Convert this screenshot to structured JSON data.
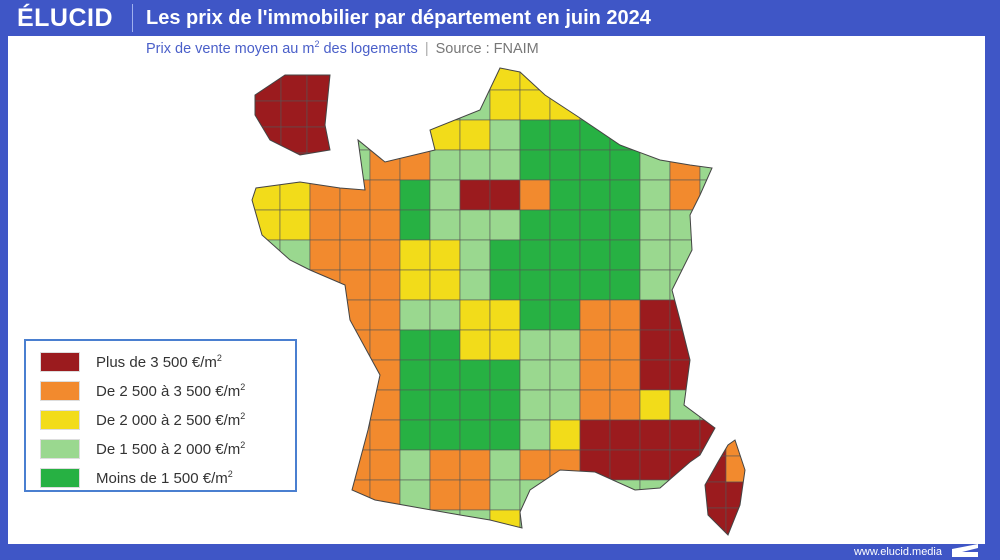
{
  "brand": "ÉLUCID",
  "header": {
    "title": "Les prix de l'immobilier par département en juin 2024"
  },
  "subtitle": {
    "text": "Prix de vente moyen au m",
    "sup": "2",
    "rest": " des logements",
    "separator": "|",
    "source": "Source : FNAIM"
  },
  "legend": {
    "items": [
      {
        "label": "Plus de 3 500 €/m",
        "sup": "2",
        "color": "#9b1b1e"
      },
      {
        "label": "De 2 500 à 3 500 €/m",
        "sup": "2",
        "color": "#f28a2e"
      },
      {
        "label": "De 2 000 à 2 500 €/m",
        "sup": "2",
        "color": "#f2dc1a"
      },
      {
        "label": "De 1 500 à 2 000 €/m",
        "sup": "2",
        "color": "#9ad88f"
      },
      {
        "label": "Moins de 1 500 €/m",
        "sup": "2",
        "color": "#27b143"
      }
    ]
  },
  "footer": {
    "url": "www.elucid.media"
  }
}
